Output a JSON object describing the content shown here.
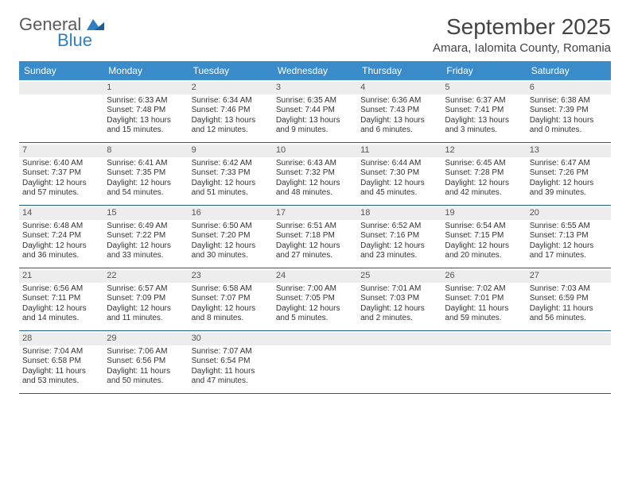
{
  "logo": {
    "word1": "General",
    "word2": "Blue"
  },
  "title": "September 2025",
  "location": "Amara, Ialomita County, Romania",
  "colors": {
    "header_bg": "#3a8bc9",
    "header_text": "#ffffff",
    "daynum_bg": "#ededed",
    "week_border": "#1f5d8f",
    "text": "#333333",
    "logo_gray": "#5a5a5a",
    "logo_blue": "#2f7fc2"
  },
  "day_headers": [
    "Sunday",
    "Monday",
    "Tuesday",
    "Wednesday",
    "Thursday",
    "Friday",
    "Saturday"
  ],
  "weeks": [
    [
      null,
      {
        "n": "1",
        "sr": "6:33 AM",
        "ss": "7:48 PM",
        "dl": "13 hours and 15 minutes."
      },
      {
        "n": "2",
        "sr": "6:34 AM",
        "ss": "7:46 PM",
        "dl": "13 hours and 12 minutes."
      },
      {
        "n": "3",
        "sr": "6:35 AM",
        "ss": "7:44 PM",
        "dl": "13 hours and 9 minutes."
      },
      {
        "n": "4",
        "sr": "6:36 AM",
        "ss": "7:43 PM",
        "dl": "13 hours and 6 minutes."
      },
      {
        "n": "5",
        "sr": "6:37 AM",
        "ss": "7:41 PM",
        "dl": "13 hours and 3 minutes."
      },
      {
        "n": "6",
        "sr": "6:38 AM",
        "ss": "7:39 PM",
        "dl": "13 hours and 0 minutes."
      }
    ],
    [
      {
        "n": "7",
        "sr": "6:40 AM",
        "ss": "7:37 PM",
        "dl": "12 hours and 57 minutes."
      },
      {
        "n": "8",
        "sr": "6:41 AM",
        "ss": "7:35 PM",
        "dl": "12 hours and 54 minutes."
      },
      {
        "n": "9",
        "sr": "6:42 AM",
        "ss": "7:33 PM",
        "dl": "12 hours and 51 minutes."
      },
      {
        "n": "10",
        "sr": "6:43 AM",
        "ss": "7:32 PM",
        "dl": "12 hours and 48 minutes."
      },
      {
        "n": "11",
        "sr": "6:44 AM",
        "ss": "7:30 PM",
        "dl": "12 hours and 45 minutes."
      },
      {
        "n": "12",
        "sr": "6:45 AM",
        "ss": "7:28 PM",
        "dl": "12 hours and 42 minutes."
      },
      {
        "n": "13",
        "sr": "6:47 AM",
        "ss": "7:26 PM",
        "dl": "12 hours and 39 minutes."
      }
    ],
    [
      {
        "n": "14",
        "sr": "6:48 AM",
        "ss": "7:24 PM",
        "dl": "12 hours and 36 minutes."
      },
      {
        "n": "15",
        "sr": "6:49 AM",
        "ss": "7:22 PM",
        "dl": "12 hours and 33 minutes."
      },
      {
        "n": "16",
        "sr": "6:50 AM",
        "ss": "7:20 PM",
        "dl": "12 hours and 30 minutes."
      },
      {
        "n": "17",
        "sr": "6:51 AM",
        "ss": "7:18 PM",
        "dl": "12 hours and 27 minutes."
      },
      {
        "n": "18",
        "sr": "6:52 AM",
        "ss": "7:16 PM",
        "dl": "12 hours and 23 minutes."
      },
      {
        "n": "19",
        "sr": "6:54 AM",
        "ss": "7:15 PM",
        "dl": "12 hours and 20 minutes."
      },
      {
        "n": "20",
        "sr": "6:55 AM",
        "ss": "7:13 PM",
        "dl": "12 hours and 17 minutes."
      }
    ],
    [
      {
        "n": "21",
        "sr": "6:56 AM",
        "ss": "7:11 PM",
        "dl": "12 hours and 14 minutes."
      },
      {
        "n": "22",
        "sr": "6:57 AM",
        "ss": "7:09 PM",
        "dl": "12 hours and 11 minutes."
      },
      {
        "n": "23",
        "sr": "6:58 AM",
        "ss": "7:07 PM",
        "dl": "12 hours and 8 minutes."
      },
      {
        "n": "24",
        "sr": "7:00 AM",
        "ss": "7:05 PM",
        "dl": "12 hours and 5 minutes."
      },
      {
        "n": "25",
        "sr": "7:01 AM",
        "ss": "7:03 PM",
        "dl": "12 hours and 2 minutes."
      },
      {
        "n": "26",
        "sr": "7:02 AM",
        "ss": "7:01 PM",
        "dl": "11 hours and 59 minutes."
      },
      {
        "n": "27",
        "sr": "7:03 AM",
        "ss": "6:59 PM",
        "dl": "11 hours and 56 minutes."
      }
    ],
    [
      {
        "n": "28",
        "sr": "7:04 AM",
        "ss": "6:58 PM",
        "dl": "11 hours and 53 minutes."
      },
      {
        "n": "29",
        "sr": "7:06 AM",
        "ss": "6:56 PM",
        "dl": "11 hours and 50 minutes."
      },
      {
        "n": "30",
        "sr": "7:07 AM",
        "ss": "6:54 PM",
        "dl": "11 hours and 47 minutes."
      },
      null,
      null,
      null,
      null
    ]
  ],
  "labels": {
    "sunrise": "Sunrise:",
    "sunset": "Sunset:",
    "daylight": "Daylight:"
  }
}
